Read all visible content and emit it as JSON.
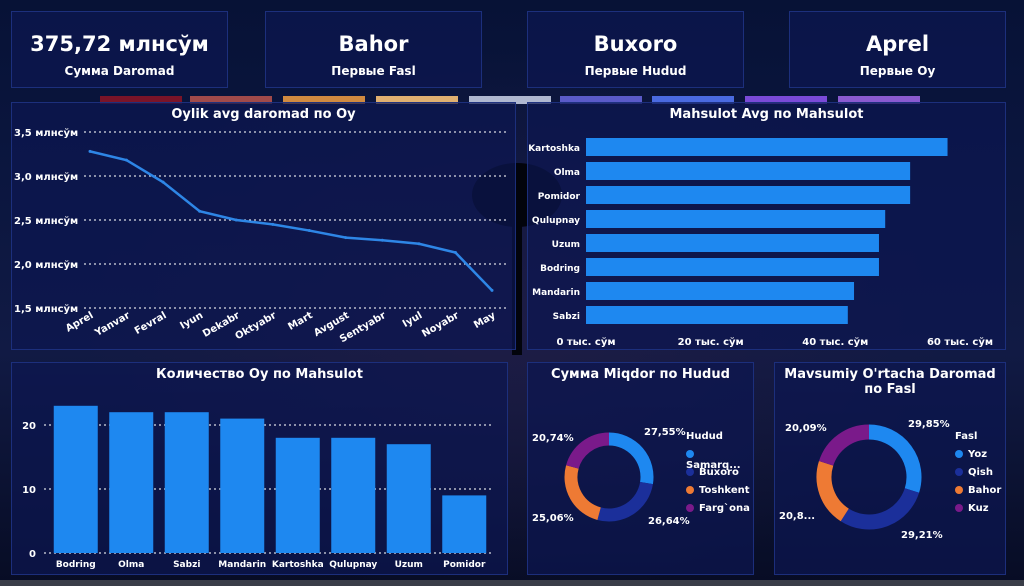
{
  "kpis": [
    {
      "value": "375,72 млнсўм",
      "label": "Сумма Daromad"
    },
    {
      "value": "Bahor",
      "label": "Первые Fasl"
    },
    {
      "value": "Buxoro",
      "label": "Первые Hudud"
    },
    {
      "value": "Aprel",
      "label": "Первые Oy"
    }
  ],
  "colors": {
    "card": "#0c1650",
    "bar": "#1e88f0",
    "line": "#2e86e6",
    "pie": [
      "#1e88f0",
      "#1b2f9a",
      "#ee7a34",
      "#7a1a8a"
    ]
  },
  "chart_data": [
    {
      "type": "line",
      "title": "Oylik avg daromad по Oy",
      "x": [
        "Aprel",
        "Yanvar",
        "Fevral",
        "Iyun",
        "Dekabr",
        "Oktyabr",
        "Mart",
        "Avgust",
        "Sentyabr",
        "Iyul",
        "Noyabr",
        "May"
      ],
      "values": [
        3.28,
        3.18,
        2.93,
        2.6,
        2.5,
        2.45,
        2.38,
        2.3,
        2.27,
        2.23,
        2.13,
        1.7
      ],
      "ylim": [
        1.5,
        3.5
      ],
      "yticks": [
        "1,5 млнсўм",
        "2,0 млнсўм",
        "2,5 млнсўм",
        "3,0 млнсўм",
        "3,5 млнсўм"
      ],
      "grid": true
    },
    {
      "type": "bar",
      "orientation": "horizontal",
      "title": "Mahsulot Avg по Mahsulot",
      "categories": [
        "Kartoshka",
        "Olma",
        "Pomidor",
        "Qulupnay",
        "Uzum",
        "Bodring",
        "Mandarin",
        "Sabzi"
      ],
      "values": [
        58,
        52,
        52,
        48,
        47,
        47,
        43,
        42
      ],
      "xlim": [
        0,
        60
      ],
      "xticks": [
        "0 тыс. сўм",
        "20 тыс. сўм",
        "40 тыс. сўм",
        "60 тыс. сўм"
      ]
    },
    {
      "type": "bar",
      "title": "Количество Oy по Mahsulot",
      "categories": [
        "Bodring",
        "Olma",
        "Sabzi",
        "Mandarin",
        "Kartoshka",
        "Qulupnay",
        "Uzum",
        "Pomidor"
      ],
      "values": [
        23,
        22,
        22,
        21,
        18,
        18,
        17,
        9
      ],
      "ylim": [
        0,
        25
      ],
      "yticks": [
        "0",
        "10",
        "20"
      ],
      "grid": true
    },
    {
      "type": "pie",
      "title": "Сумма Miqdor по Hudud",
      "legend_title": "Hudud",
      "labels": [
        "Samarq...",
        "Buxoro",
        "Toshkent",
        "Farg`ona"
      ],
      "values": [
        27.55,
        26.64,
        25.06,
        20.74
      ],
      "value_labels": [
        "27,55%",
        "26,64%",
        "25,06%",
        "20,74%"
      ],
      "legend": "right"
    },
    {
      "type": "pie",
      "title": "Mavsumiy O'rtacha Daromad по Fasl",
      "legend_title": "Fasl",
      "labels": [
        "Yoz",
        "Qish",
        "Bahor",
        "Kuz"
      ],
      "values": [
        29.85,
        29.21,
        20.85,
        20.09
      ],
      "value_labels": [
        "29,85%",
        "29,21%",
        "20,8...",
        "20,09%"
      ],
      "legend": "right"
    }
  ]
}
